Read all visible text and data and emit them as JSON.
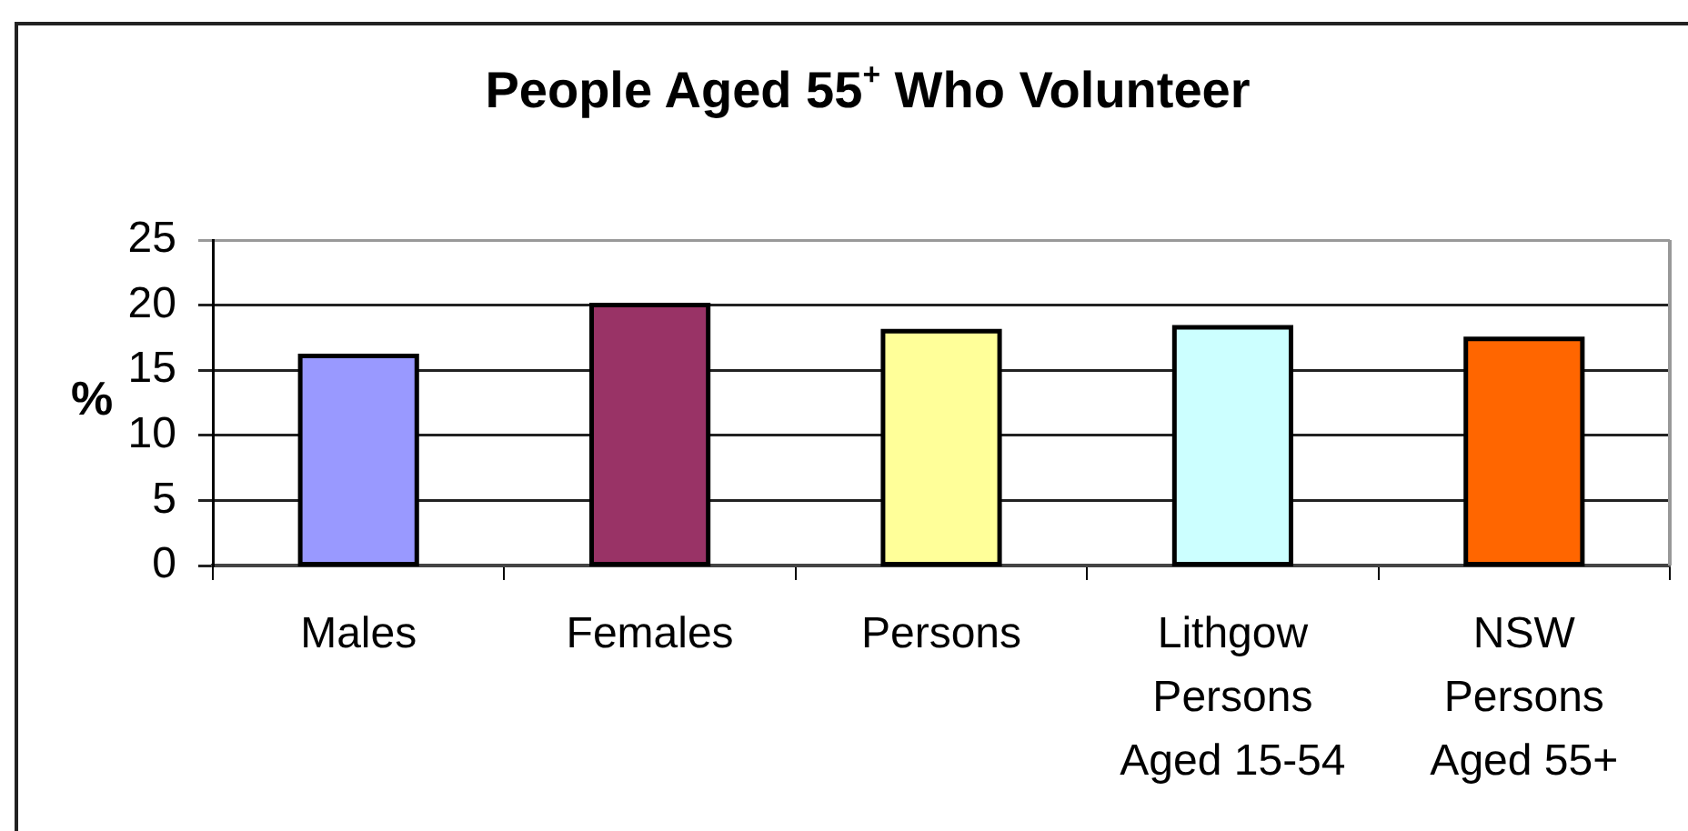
{
  "chart_data": {
    "type": "bar",
    "title": "People Aged 55$^{+}$ Who Volunteer",
    "ylabel": "%",
    "categories": [
      "Males",
      "Females",
      "Persons",
      "Lithgow Persons Aged 15-54",
      "NSW Persons Aged 55+"
    ],
    "values": [
      16.1,
      20.0,
      18.0,
      18.3,
      17.4
    ],
    "colors": [
      "#9999ff",
      "#993366",
      "#ffff99",
      "#ccffff",
      "#ff6600"
    ],
    "ylim": [
      0,
      25
    ],
    "yticks": [
      0,
      5,
      10,
      15,
      20,
      25
    ],
    "grid": "y"
  }
}
